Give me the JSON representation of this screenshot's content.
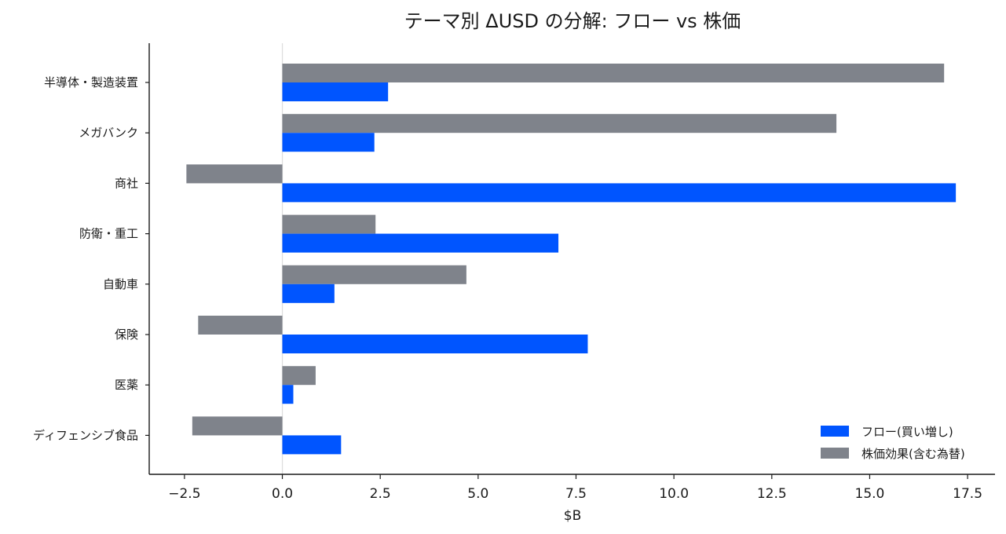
{
  "chart_data": {
    "type": "bar",
    "orientation": "horizontal",
    "title": "テーマ別 ΔUSD の分解: フロー vs 株価",
    "xlabel": "$B",
    "ylabel": "",
    "xlim": [
      -3.4,
      18.2
    ],
    "xticks": [
      -2.5,
      0.0,
      2.5,
      5.0,
      7.5,
      10.0,
      12.5,
      15.0,
      17.5
    ],
    "xtick_labels": [
      "−2.5",
      "0.0",
      "2.5",
      "5.0",
      "7.5",
      "10.0",
      "12.5",
      "15.0",
      "17.5"
    ],
    "grid": false,
    "zero_line": true,
    "legend_position": "lower-right",
    "categories": [
      "半導体・製造装置",
      "メガバンク",
      "商社",
      "防衛・重工",
      "自動車",
      "保険",
      "医薬",
      "ディフェンシブ食品"
    ],
    "series": [
      {
        "name": "フロー(買い増し)",
        "color": "#0055ff",
        "values": [
          2.7,
          2.35,
          17.2,
          7.05,
          1.33,
          7.8,
          0.28,
          1.5
        ]
      },
      {
        "name": "株価効果(含む為替)",
        "color": "#7f838b",
        "values": [
          16.9,
          14.15,
          -2.45,
          2.38,
          4.7,
          -2.15,
          0.85,
          -2.3
        ]
      }
    ]
  }
}
